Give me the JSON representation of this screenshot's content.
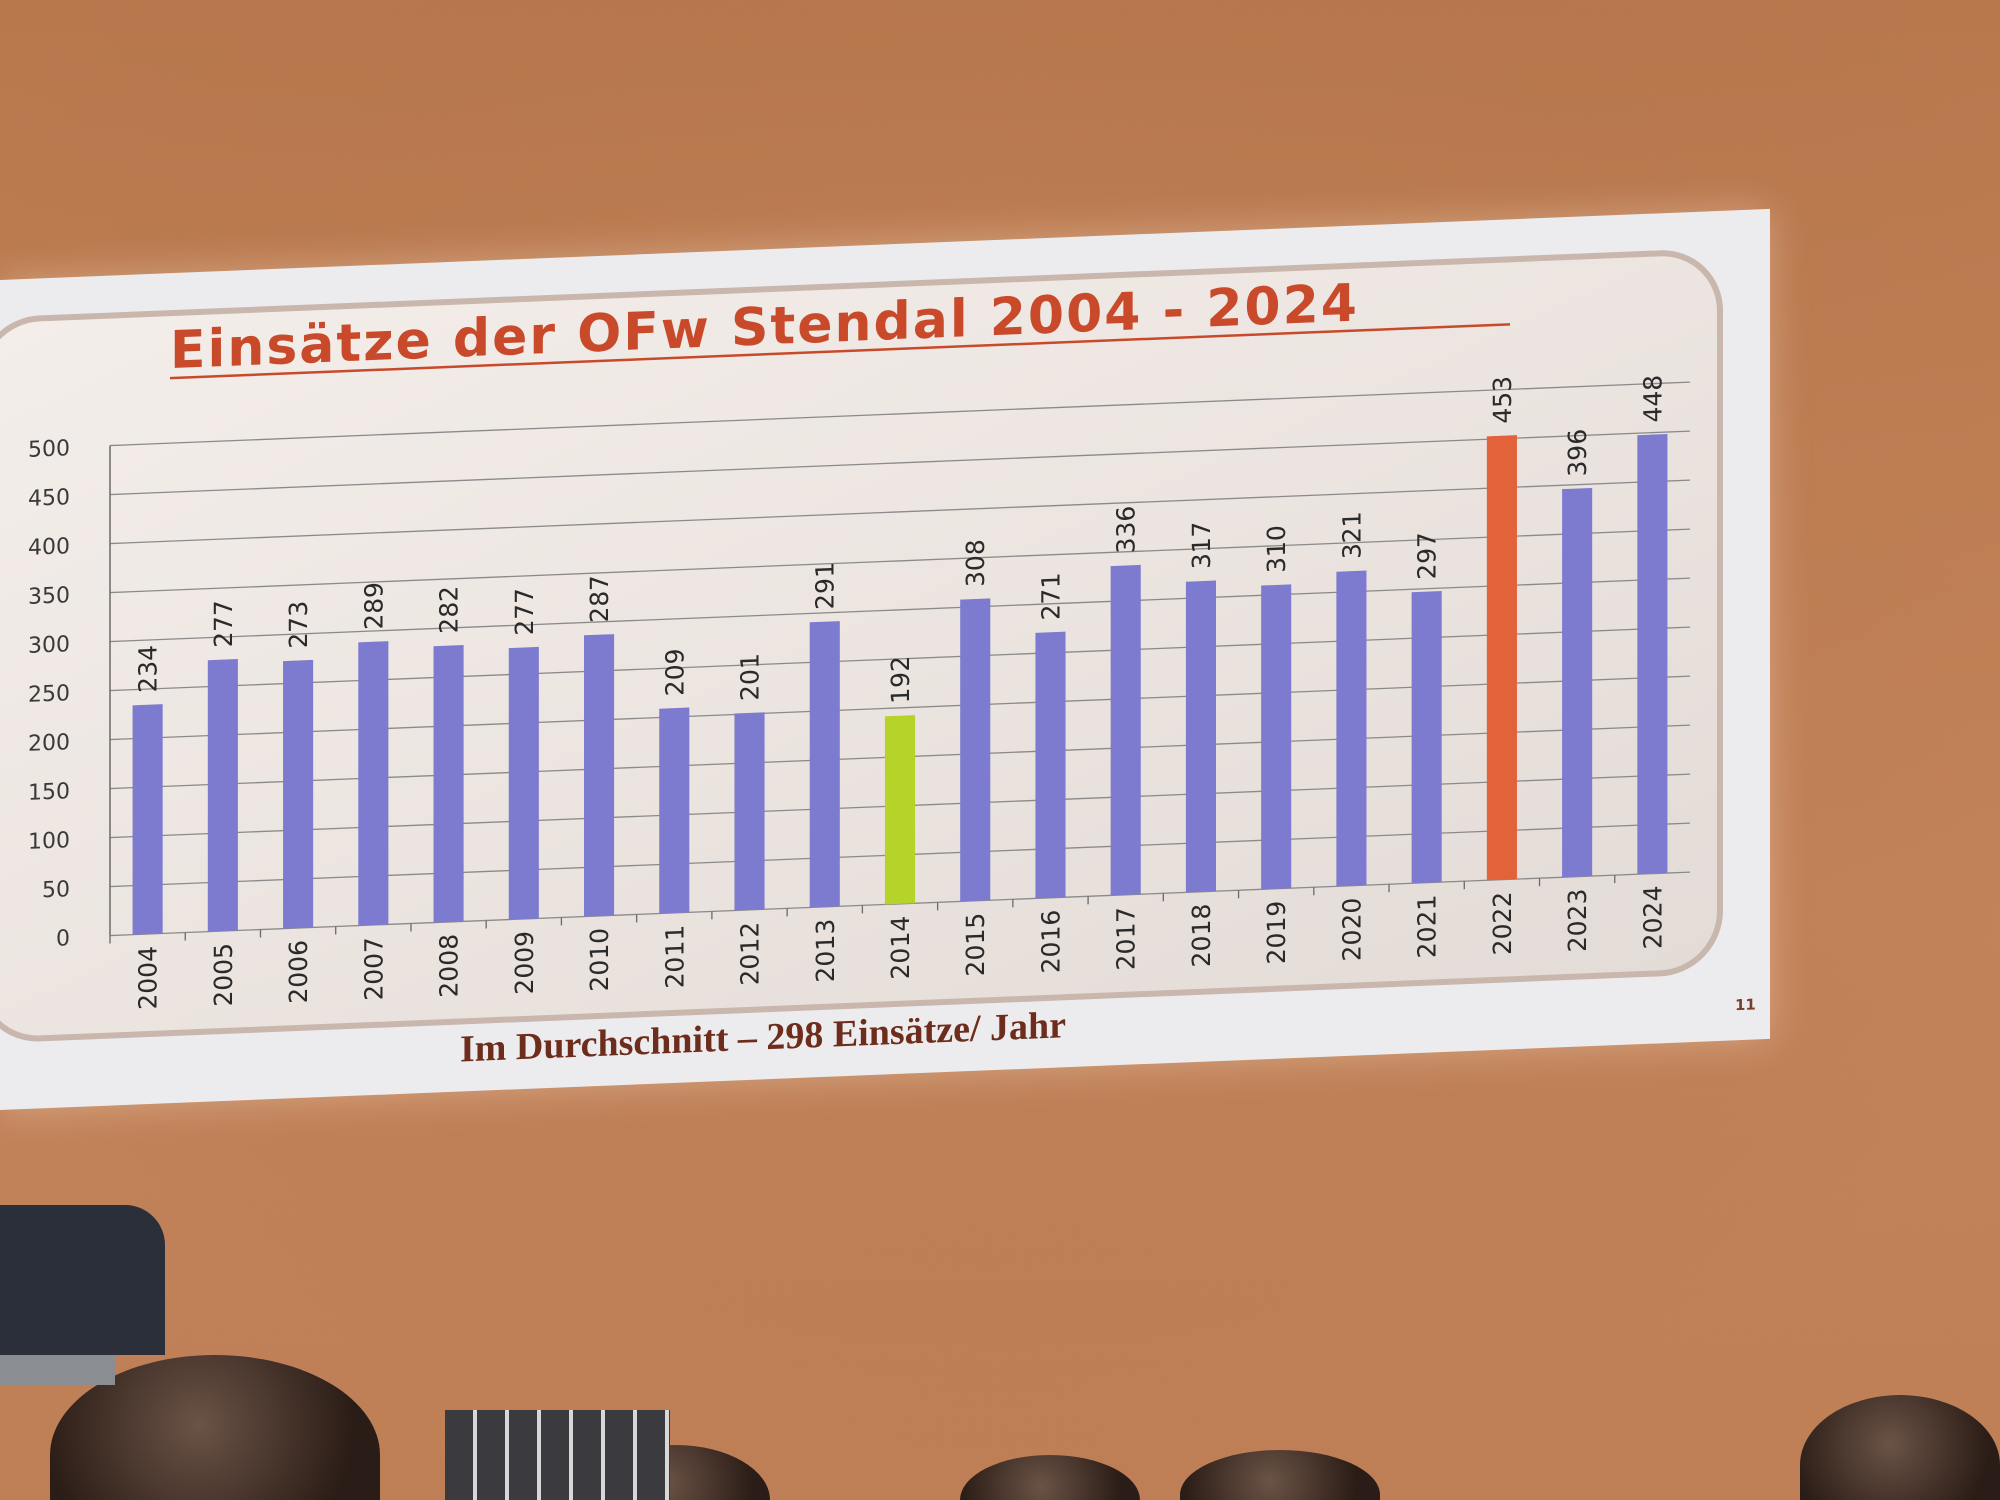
{
  "slide": {
    "title": "Einsätze der OFw Stendal 2004 - 2024",
    "footer": "Im Durchschnitt – 298 Einsätze/ Jahr",
    "page_number": "11"
  },
  "colors": {
    "default_bar": "#7d7bd0",
    "highlight_low": "#b6d32a",
    "highlight_high": "#e2623a",
    "title": "#c84a2a",
    "slide_background": "#ececee",
    "room_wall": "#c4845a"
  },
  "chart_data": {
    "type": "bar",
    "title": "Einsätze der OFw Stendal 2004 - 2024",
    "xlabel": "",
    "ylabel": "",
    "ylim": [
      0,
      500
    ],
    "yticks": [
      "0",
      "50",
      "100",
      "150",
      "200",
      "250",
      "300",
      "350",
      "400",
      "450",
      "500"
    ],
    "grid": true,
    "categories": [
      "2004",
      "2005",
      "2006",
      "2007",
      "2008",
      "2009",
      "2010",
      "2011",
      "2012",
      "2013",
      "2014",
      "2015",
      "2016",
      "2017",
      "2018",
      "2019",
      "2020",
      "2021",
      "2022",
      "2023",
      "2024"
    ],
    "values": [
      234,
      277,
      273,
      289,
      282,
      277,
      287,
      209,
      201,
      291,
      192,
      308,
      271,
      336,
      317,
      310,
      321,
      297,
      453,
      396,
      448
    ],
    "data_labels": [
      "234",
      "277",
      "273",
      "289",
      "282",
      "277",
      "287",
      "209",
      "201",
      "291",
      "192",
      "308",
      "271",
      "336",
      "317",
      "310",
      "321",
      "297",
      "453",
      "396",
      "448"
    ],
    "bar_colors": [
      "default",
      "default",
      "default",
      "default",
      "default",
      "default",
      "default",
      "default",
      "default",
      "default",
      "highlight_low",
      "default",
      "default",
      "default",
      "default",
      "default",
      "default",
      "default",
      "highlight_high",
      "default",
      "default"
    ],
    "annotation": "Im Durchschnitt – 298 Einsätze/ Jahr"
  }
}
